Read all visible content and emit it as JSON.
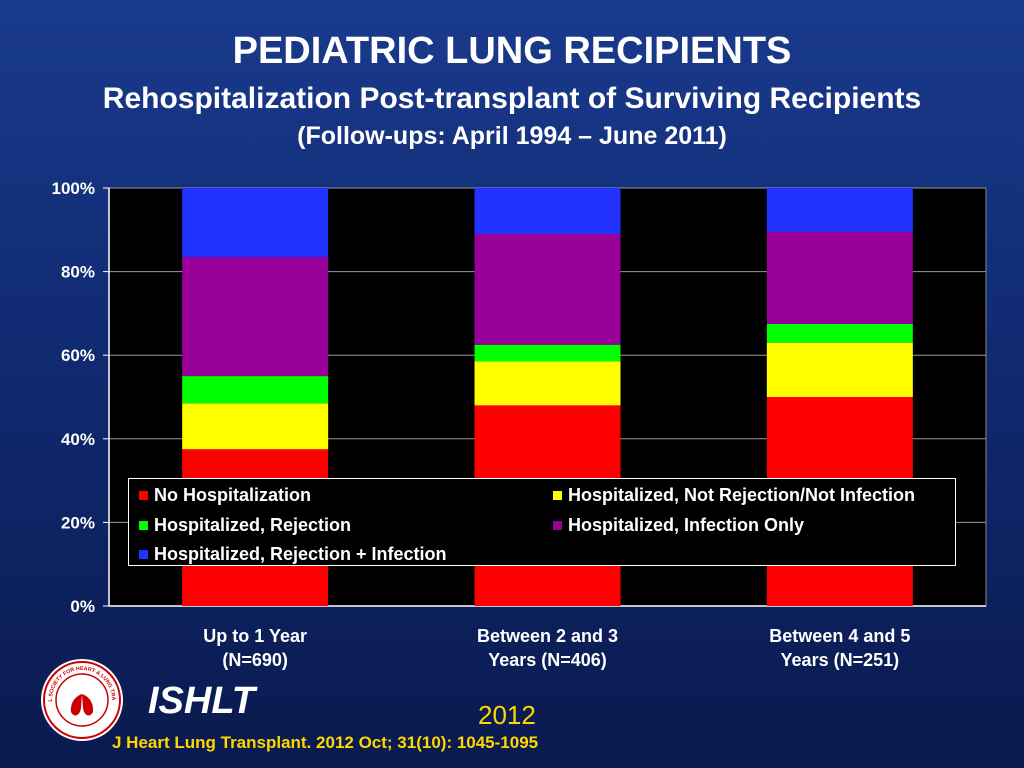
{
  "title": "PEDIATRIC LUNG RECIPIENTS",
  "subtitle": "Rehospitalization Post-transplant of Surviving Recipients",
  "followup": "(Follow-ups: April 1994 – June 2011)",
  "chart_data": {
    "type": "bar",
    "stacked": true,
    "categories": [
      [
        "Up to 1 Year",
        "(N=690)"
      ],
      [
        "Between 2 and 3",
        "Years (N=406)"
      ],
      [
        "Between 4 and 5",
        "Years (N=251)"
      ]
    ],
    "ylim": [
      0,
      100
    ],
    "yticks": [
      "0%",
      "20%",
      "40%",
      "60%",
      "80%",
      "100%"
    ],
    "grid": true,
    "legend_position": "inside-bottom",
    "series": [
      {
        "name": "No Hospitalization",
        "color": "#ff0000",
        "values": [
          37.5,
          48,
          50
        ]
      },
      {
        "name": "Hospitalized, Not Rejection/Not Infection",
        "color": "#ffff00",
        "values": [
          11,
          10.5,
          13
        ]
      },
      {
        "name": "Hospitalized, Rejection",
        "color": "#00ff00",
        "values": [
          6.5,
          4,
          4.5
        ]
      },
      {
        "name": "Hospitalized, Infection Only",
        "color": "#990099",
        "values": [
          28.5,
          26.5,
          22
        ]
      },
      {
        "name": "Hospitalized, Rejection + Infection",
        "color": "#2233ff",
        "values": [
          16.5,
          11,
          10.5
        ]
      }
    ]
  },
  "footer": {
    "brand": "ISHLT",
    "year": "2012",
    "citation": "J Heart Lung Transplant.  2012 Oct; 31(10): 1045-1095",
    "logo_text": "INTERNATIONAL SOCIETY FOR HEART & LUNG TRANSPLANTATION"
  }
}
